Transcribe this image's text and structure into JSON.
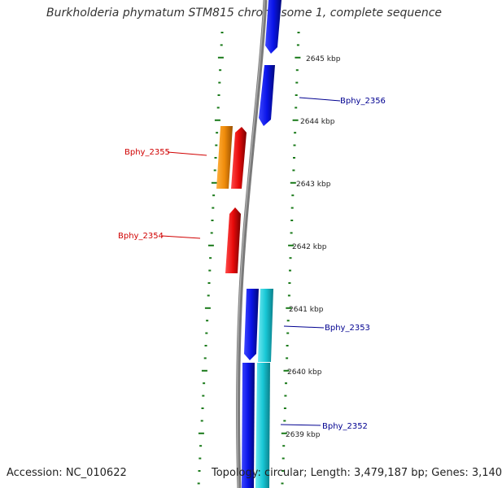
{
  "title": "Burkholderia phymatum STM815 chromosome 1, complete sequence",
  "footer": {
    "accession": "Accession: NC_010622",
    "topology": "Topology: circular; Length: 3,479,187 bp; Genes: 3,140"
  },
  "colors": {
    "backbone": "#7a7a7a",
    "tick": "#1a7a1a",
    "blue": "#0a14e8",
    "cyan": "#18c8d6",
    "red": "#e80a0a",
    "orange": "#f08c0a",
    "label_blue": "#000090",
    "label_red": "#d00000"
  },
  "kbp_labels": [
    "2645 kbp",
    "2644 kbp",
    "2643 kbp",
    "2642 kbp",
    "2641 kbp",
    "2640 kbp",
    "2639 kbp"
  ],
  "gene_labels": {
    "bphy_2356": "Bphy_2356",
    "bphy_2355": "Bphy_2355",
    "bphy_2354": "Bphy_2354",
    "bphy_2353": "Bphy_2353",
    "bphy_2352": "Bphy_2352"
  }
}
